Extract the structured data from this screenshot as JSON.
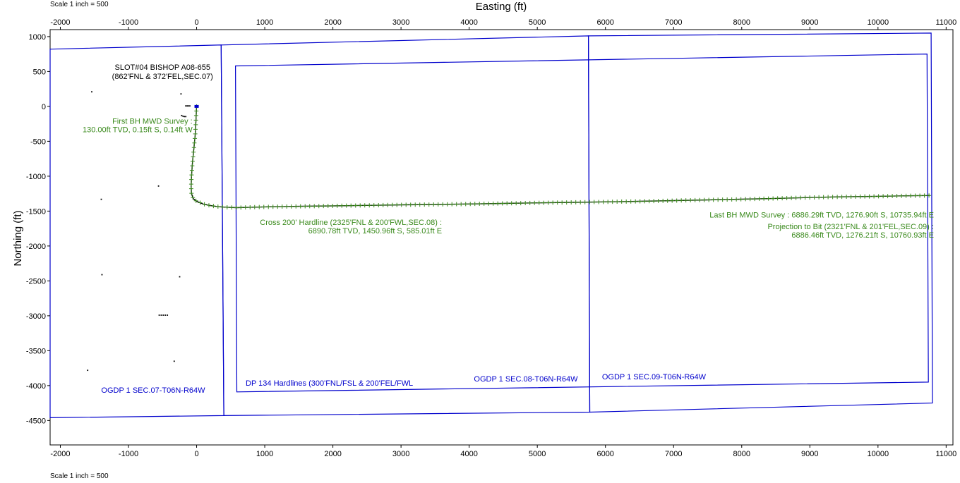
{
  "scale_top": "Scale 1 inch = 500",
  "scale_bottom": "Scale 1 inch = 500",
  "chart_data": {
    "type": "scatter",
    "title": "",
    "xlabel": "Easting (ft)",
    "ylabel": "Northing (ft)",
    "xlim": [
      -2150,
      11100
    ],
    "ylim": [
      -4850,
      1100
    ],
    "xticks": [
      -2000,
      -1000,
      0,
      1000,
      2000,
      3000,
      4000,
      5000,
      6000,
      7000,
      8000,
      9000,
      10000,
      11000
    ],
    "yticks": [
      1000,
      500,
      0,
      -500,
      -1000,
      -1500,
      -2000,
      -2500,
      -3000,
      -3500,
      -4000,
      -4500
    ],
    "grid": false,
    "colors": {
      "boundary": "#0000cc",
      "survey": "#3a8a1c",
      "path": "#000000",
      "label": "#000000"
    },
    "sections": [
      {
        "name": "OGDP 1 SEC.07-T06N-R64W",
        "polygon": [
          [
            -2150,
            820
          ],
          [
            360,
            880
          ],
          [
            400,
            -4430
          ],
          [
            -2150,
            -4460
          ]
        ],
        "label_at": [
          -1400,
          -4100
        ]
      },
      {
        "name": "OGDP 1 SEC.08-T06N-R64W",
        "polygon": [
          [
            360,
            880
          ],
          [
            5750,
            1010
          ],
          [
            5770,
            -4380
          ],
          [
            400,
            -4430
          ]
        ],
        "label_at": [
          4070,
          -3940
        ]
      },
      {
        "name": "OGDP 1 SEC.09-T06N-R64W",
        "polygon": [
          [
            5750,
            1010
          ],
          [
            10780,
            1050
          ],
          [
            10800,
            -4250
          ],
          [
            5770,
            -4380
          ]
        ],
        "label_at": [
          5950,
          -3910
        ]
      }
    ],
    "hardlines": {
      "name": "DP 134 Hardlines (300'FNL/FSL & 200'FEL/FWL",
      "polygon": [
        [
          570,
          580
        ],
        [
          10720,
          750
        ],
        [
          10740,
          -3950
        ],
        [
          590,
          -4090
        ]
      ],
      "label_at": [
        720,
        -4000
      ]
    },
    "slot": {
      "name": "SLOT#04 BISHOP A08-655",
      "location": "(862'FNL & 372'FEL,SEC.07)",
      "label_at": [
        -500,
        525
      ]
    },
    "survey_path": {
      "x": [
        0,
        -10,
        -20,
        -40,
        -60,
        -75,
        -80,
        -75,
        -50,
        0,
        100,
        200,
        300,
        400,
        500,
        585,
        800,
        1000,
        1500,
        2000,
        2500,
        3000,
        3500,
        4000,
        4500,
        5000,
        5500,
        6000,
        6500,
        7000,
        7500,
        8000,
        8500,
        9000,
        9500,
        10000,
        10500,
        10735.94,
        10760.93
      ],
      "y": [
        0,
        -200,
        -400,
        -600,
        -800,
        -1000,
        -1150,
        -1250,
        -1320,
        -1360,
        -1400,
        -1420,
        -1435,
        -1443,
        -1448,
        -1451,
        -1445,
        -1440,
        -1432,
        -1425,
        -1418,
        -1410,
        -1405,
        -1398,
        -1390,
        -1382,
        -1375,
        -1368,
        -1360,
        -1350,
        -1340,
        -1330,
        -1318,
        -1305,
        -1295,
        -1288,
        -1280,
        -1277,
        -1276
      ]
    },
    "annotations": [
      {
        "lines": [
          "First BH MWD Survey :",
          "130.00ft TVD, 0.15ft S, 0.14ft W"
        ],
        "at": [
          -60,
          -250
        ],
        "anchor": "end"
      },
      {
        "lines": [
          "Cross 200' Hardline (2325'FNL & 200'FWL,SEC.08) :",
          "6890.78ft TVD, 1450.96ft S, 585.01ft E"
        ],
        "at": [
          3600,
          -1700
        ],
        "anchor": "end"
      },
      {
        "lines": [
          "Last BH MWD Survey : 6886.29ft TVD, 1276.90ft S, 10735.94ft E"
        ],
        "at": [
          10820,
          -1590
        ],
        "anchor": "end"
      },
      {
        "lines": [
          "Projection to Bit (2321'FNL & 201'FEL,SEC.09) :",
          "6886.46ft TVD, 1276.21ft S, 10760.93ft E"
        ],
        "at": [
          10820,
          -1760
        ],
        "anchor": "end"
      }
    ],
    "offset_wells": [
      [
        -1540,
        210
      ],
      [
        -230,
        180
      ],
      [
        -220,
        -130
      ],
      [
        -200,
        -140
      ],
      [
        -180,
        -145
      ],
      [
        -160,
        -145
      ],
      [
        -160,
        8
      ],
      [
        -140,
        8
      ],
      [
        -120,
        8
      ],
      [
        -100,
        8
      ],
      [
        -560,
        -1140
      ],
      [
        -1400,
        -1330
      ],
      [
        -1390,
        -2410
      ],
      [
        -250,
        -2440
      ],
      [
        -550,
        -2990
      ],
      [
        -520,
        -2990
      ],
      [
        -490,
        -2990
      ],
      [
        -460,
        -2990
      ],
      [
        -430,
        -2990
      ],
      [
        -330,
        -3650
      ],
      [
        -1600,
        -3780
      ]
    ]
  }
}
